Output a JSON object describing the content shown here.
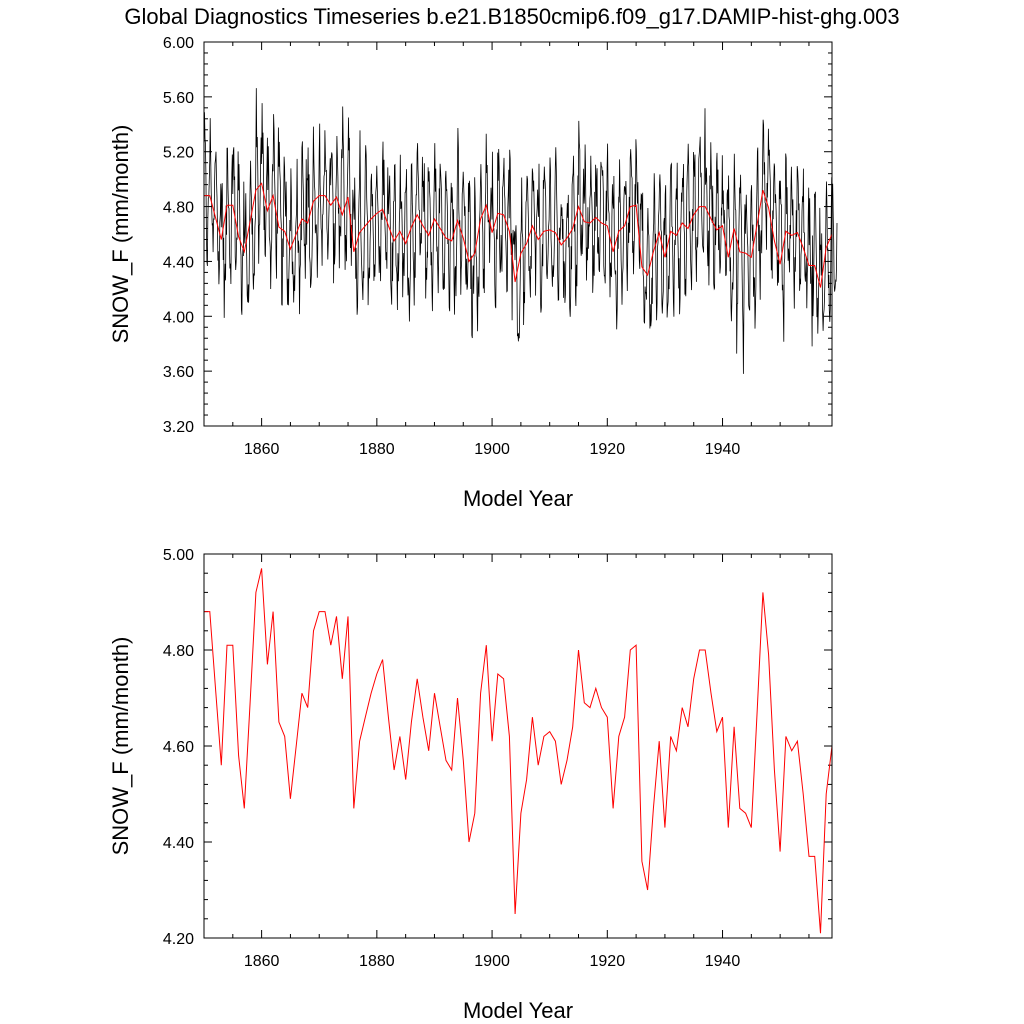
{
  "title": "Global Diagnostics Timeseries b.e21.B1850cmip6.f09_g17.DAMIP-hist-ghg.003",
  "chart_data": [
    {
      "type": "line",
      "xlabel": "Model Year",
      "ylabel": "SNOW_F (mm/month)",
      "xlim": [
        1850,
        1959
      ],
      "ylim": [
        3.2,
        6.0
      ],
      "xticks": [
        "1860",
        "1880",
        "1900",
        "1920",
        "1940"
      ],
      "yticks": [
        "3.20",
        "3.60",
        "4.00",
        "4.40",
        "4.80",
        "5.20",
        "5.60",
        "6.00"
      ],
      "grid": false,
      "series": [
        {
          "role": "monthly",
          "color": "#000000",
          "x_start": 1850.0,
          "x_step": 0.0833
        },
        {
          "role": "annual",
          "color": "#ff0000"
        }
      ]
    },
    {
      "type": "line",
      "xlabel": "Model Year",
      "ylabel": "SNOW_F (mm/month)",
      "xlim": [
        1850,
        1959
      ],
      "ylim": [
        4.2,
        5.0
      ],
      "xticks": [
        "1860",
        "1880",
        "1900",
        "1920",
        "1940"
      ],
      "yticks": [
        "4.20",
        "4.40",
        "4.60",
        "4.80",
        "5.00"
      ],
      "grid": false,
      "series": [
        {
          "role": "annual",
          "color": "#ff0000"
        }
      ]
    }
  ],
  "annual_means": {
    "x": [
      1850,
      1851,
      1852,
      1853,
      1854,
      1855,
      1856,
      1857,
      1858,
      1859,
      1860,
      1861,
      1862,
      1863,
      1864,
      1865,
      1866,
      1867,
      1868,
      1869,
      1870,
      1871,
      1872,
      1873,
      1874,
      1875,
      1876,
      1877,
      1878,
      1879,
      1880,
      1881,
      1882,
      1883,
      1884,
      1885,
      1886,
      1887,
      1888,
      1889,
      1890,
      1891,
      1892,
      1893,
      1894,
      1895,
      1896,
      1897,
      1898,
      1899,
      1900,
      1901,
      1902,
      1903,
      1904,
      1905,
      1906,
      1907,
      1908,
      1909,
      1910,
      1911,
      1912,
      1913,
      1914,
      1915,
      1916,
      1917,
      1918,
      1919,
      1920,
      1921,
      1922,
      1923,
      1924,
      1925,
      1926,
      1927,
      1928,
      1929,
      1930,
      1931,
      1932,
      1933,
      1934,
      1935,
      1936,
      1937,
      1938,
      1939,
      1940,
      1941,
      1942,
      1943,
      1944,
      1945,
      1946,
      1947,
      1948,
      1949,
      1950,
      1951,
      1952,
      1953,
      1954,
      1955,
      1956,
      1957,
      1958,
      1959
    ],
    "y": [
      4.88,
      4.88,
      4.72,
      4.56,
      4.81,
      4.81,
      4.58,
      4.47,
      4.69,
      4.92,
      4.97,
      4.77,
      4.88,
      4.65,
      4.62,
      4.49,
      4.6,
      4.71,
      4.68,
      4.84,
      4.88,
      4.88,
      4.81,
      4.87,
      4.74,
      4.87,
      4.47,
      4.61,
      4.66,
      4.71,
      4.75,
      4.78,
      4.66,
      4.55,
      4.62,
      4.53,
      4.65,
      4.74,
      4.66,
      4.59,
      4.71,
      4.64,
      4.57,
      4.55,
      4.7,
      4.57,
      4.4,
      4.46,
      4.71,
      4.81,
      4.61,
      4.75,
      4.74,
      4.62,
      4.25,
      4.46,
      4.53,
      4.66,
      4.56,
      4.62,
      4.63,
      4.61,
      4.52,
      4.57,
      4.64,
      4.8,
      4.69,
      4.68,
      4.72,
      4.68,
      4.66,
      4.47,
      4.62,
      4.66,
      4.8,
      4.81,
      4.36,
      4.3,
      4.47,
      4.61,
      4.43,
      4.62,
      4.59,
      4.68,
      4.64,
      4.74,
      4.8,
      4.8,
      4.71,
      4.63,
      4.66,
      4.43,
      4.64,
      4.47,
      4.46,
      4.43,
      4.67,
      4.92,
      4.79,
      4.55,
      4.38,
      4.62,
      4.59,
      4.61,
      4.5,
      4.37,
      4.37,
      4.21,
      4.5,
      4.6
    ]
  }
}
